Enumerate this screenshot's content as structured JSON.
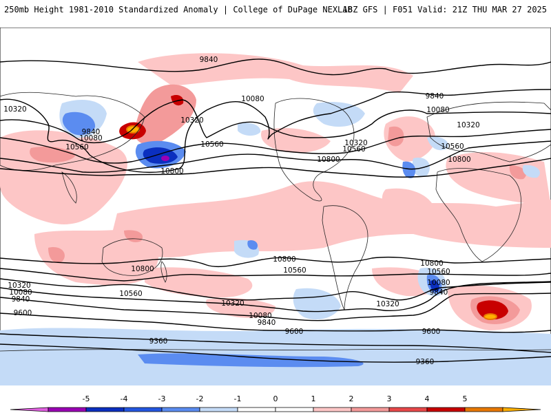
{
  "header": {
    "left": "250mb Height 1981-2010 Standardized Anomaly | College of DuPage NEXLAB",
    "right": "18Z GFS | F051 Valid: 21Z THU MAR 27 2025"
  },
  "map": {
    "projection": "equirectangular",
    "contour_labels": [
      "9840",
      "10320",
      "9840",
      "10080",
      "10560",
      "10800",
      "10320",
      "10560",
      "10080",
      "9840",
      "10080",
      "10320",
      "10560",
      "10800",
      "10320",
      "10560",
      "10800",
      "10800",
      "10560",
      "10800",
      "10560",
      "10320",
      "10080",
      "9840",
      "10320",
      "10080",
      "9840",
      "9600",
      "9600",
      "10800",
      "10560",
      "10080",
      "9840",
      "10320",
      "9600",
      "9360",
      "9360"
    ]
  },
  "colorbar": {
    "tick_labels": [
      "-5",
      "-4",
      "-3",
      "-2",
      "-1",
      "0",
      "1",
      "2",
      "3",
      "4",
      "5"
    ],
    "colors": [
      "#e060e0",
      "#9a00b4",
      "#0b2fbf",
      "#2356e0",
      "#5b8cf0",
      "#c4dbf7",
      "#ffffff",
      "#ffffff",
      "#fdc6c6",
      "#f39a9a",
      "#e8484a",
      "#c80000",
      "#e87800",
      "#ffb000"
    ]
  }
}
